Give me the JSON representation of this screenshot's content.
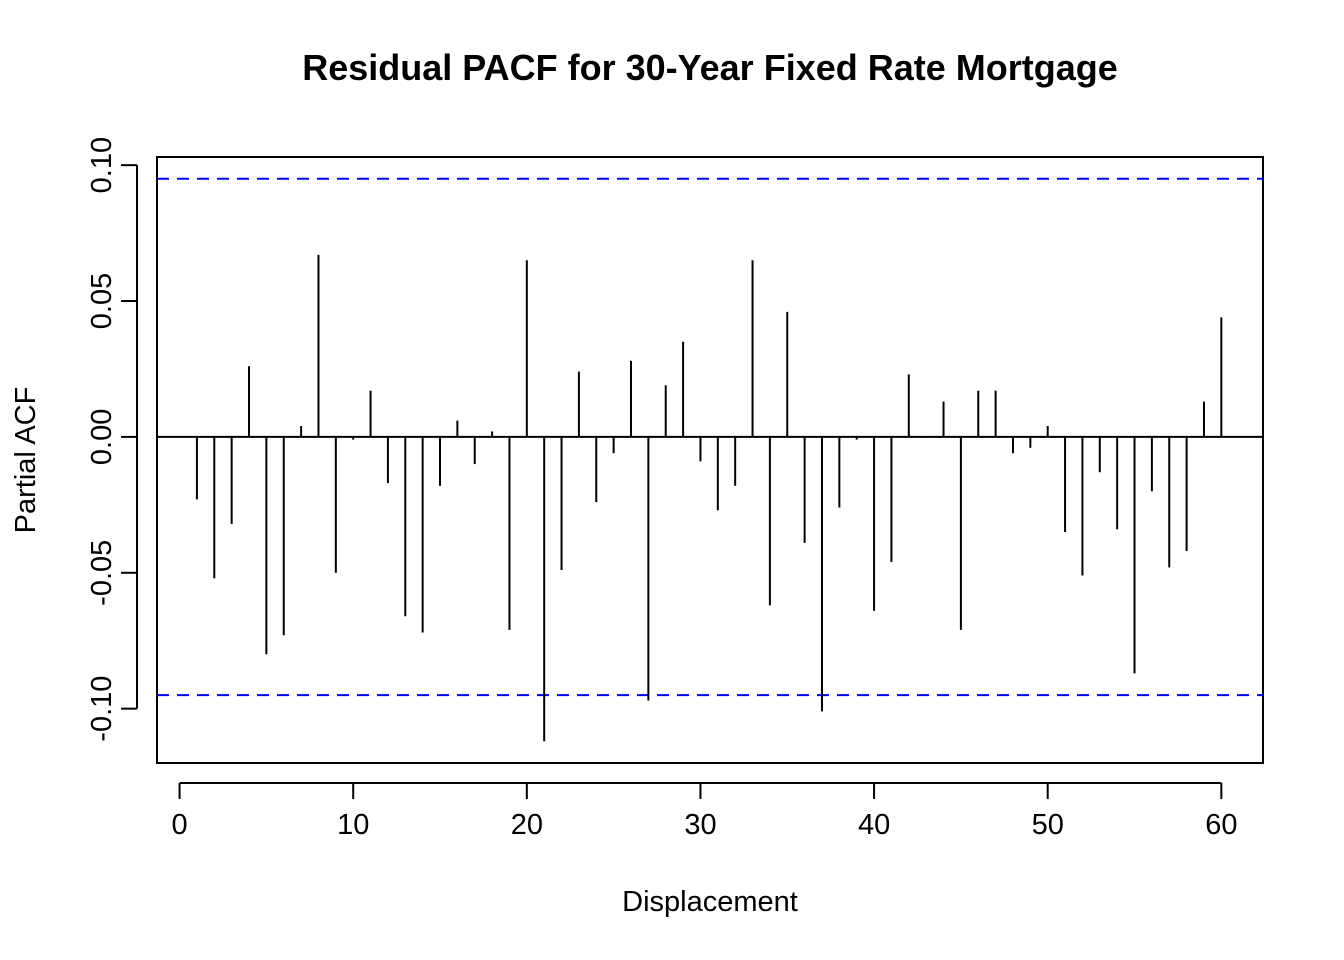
{
  "chart_data": {
    "type": "bar",
    "title": "Residual PACF for 30-Year Fixed Rate Mortgage",
    "xlabel": "Displacement",
    "ylabel": "Partial ACF",
    "xlim": [
      -1.3,
      62.4
    ],
    "ylim": [
      -0.12,
      0.103
    ],
    "x_ticks": [
      0,
      10,
      20,
      30,
      40,
      50,
      60
    ],
    "x_tick_labels": [
      "0",
      "10",
      "20",
      "30",
      "40",
      "50",
      "60"
    ],
    "y_ticks": [
      -0.1,
      -0.05,
      0.0,
      0.05,
      0.1
    ],
    "y_tick_labels": [
      "-0.10",
      "-0.05",
      "0.00",
      "0.05",
      "0.10"
    ],
    "confidence_bound": 0.095,
    "confidence_color": "#0000ff",
    "bar_color": "#000000",
    "grid": false,
    "legend": "none",
    "x": [
      1,
      2,
      3,
      4,
      5,
      6,
      7,
      8,
      9,
      10,
      11,
      12,
      13,
      14,
      15,
      16,
      17,
      18,
      19,
      20,
      21,
      22,
      23,
      24,
      25,
      26,
      27,
      28,
      29,
      30,
      31,
      32,
      33,
      34,
      35,
      36,
      37,
      38,
      39,
      40,
      41,
      42,
      43,
      44,
      45,
      46,
      47,
      48,
      49,
      50,
      51,
      52,
      53,
      54,
      55,
      56,
      57,
      58,
      59,
      60
    ],
    "values": [
      -0.023,
      -0.052,
      -0.032,
      0.026,
      -0.08,
      -0.073,
      0.004,
      0.067,
      -0.05,
      -0.001,
      0.017,
      -0.017,
      -0.066,
      -0.072,
      -0.018,
      0.006,
      -0.01,
      0.002,
      -0.071,
      0.065,
      -0.112,
      -0.049,
      0.024,
      -0.024,
      -0.006,
      0.028,
      -0.097,
      0.019,
      0.035,
      -0.009,
      -0.027,
      -0.018,
      0.065,
      -0.062,
      0.046,
      -0.039,
      -0.101,
      -0.026,
      -0.001,
      -0.064,
      -0.046,
      0.023,
      -0.0003,
      0.013,
      -0.071,
      0.017,
      0.017,
      -0.006,
      -0.004,
      0.004,
      -0.035,
      -0.051,
      -0.013,
      -0.034,
      -0.087,
      -0.02,
      -0.048,
      -0.042,
      0.013,
      0.044
    ]
  }
}
